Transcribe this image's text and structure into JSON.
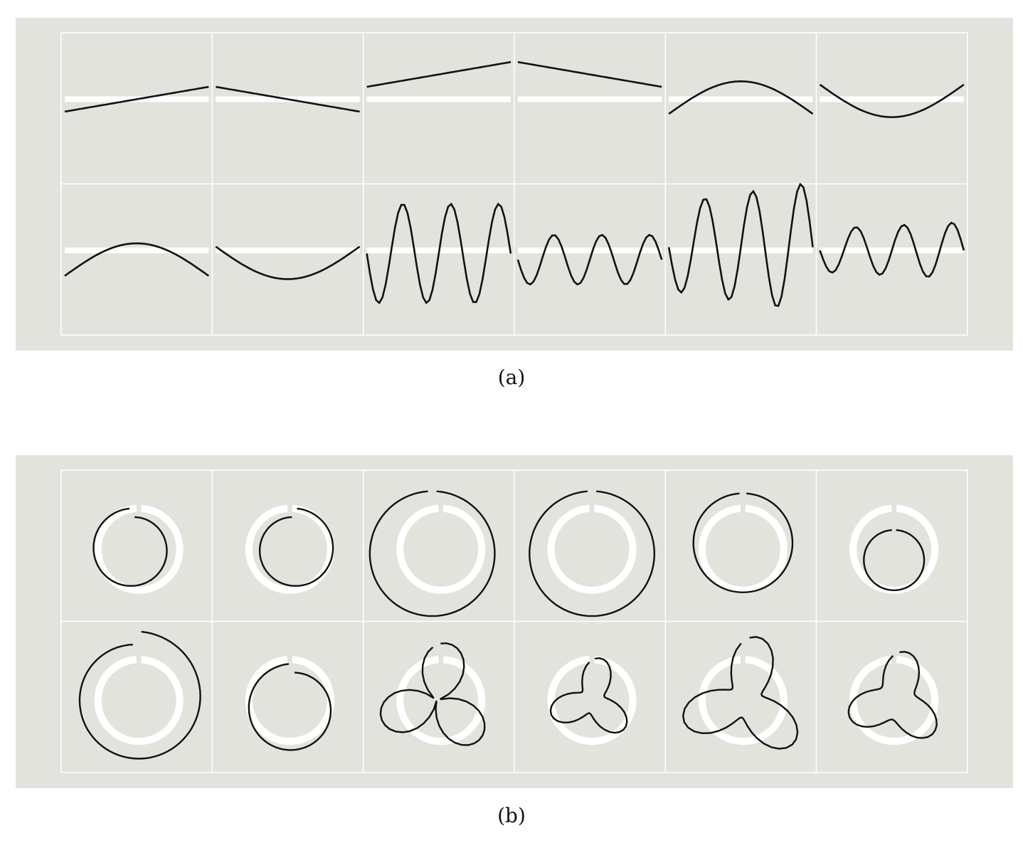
{
  "figure": {
    "caption_a": "(a)",
    "caption_b": "(b)"
  },
  "chart_data": [
    {
      "type": "line",
      "panel": "a",
      "layout": "small-multiples",
      "rows": 2,
      "cols": 6,
      "background": "#e3e3de",
      "reference_color": "#ffffff",
      "curve_color": "#111111",
      "grid": true,
      "cells": [
        {
          "kind": "linear",
          "amp": 0.4,
          "direction": 1
        },
        {
          "kind": "linear",
          "amp": 0.4,
          "direction": -1
        },
        {
          "kind": "linear",
          "amp": 0.4,
          "direction": 1,
          "offset": 0.8
        },
        {
          "kind": "linear",
          "amp": 0.4,
          "direction": -1,
          "offset": 0.8
        },
        {
          "kind": "sine",
          "amp": 1.05,
          "cycles": 0.5,
          "phase": 0.0,
          "offset": 0.0,
          "sign": 1
        },
        {
          "kind": "sine",
          "amp": 1.05,
          "cycles": 0.5,
          "phase": 0.0,
          "offset": 0.0,
          "sign": -1
        },
        {
          "kind": "sine",
          "amp": 1.05,
          "cycles": 0.5,
          "phase": 0.0,
          "offset": -0.35,
          "sign": 1
        },
        {
          "kind": "sine",
          "amp": 1.05,
          "cycles": 0.5,
          "phase": 0.0,
          "offset": -0.35,
          "sign": -1
        },
        {
          "kind": "osc",
          "amp": 1.6,
          "cycles": 3.0,
          "growth": 0.0,
          "offset": -0.1
        },
        {
          "kind": "osc",
          "amp": 0.8,
          "cycles": 3.0,
          "growth": 0.0,
          "offset": -0.3
        },
        {
          "kind": "osc",
          "amp": 1.4,
          "cycles": 3.0,
          "growth": 0.5,
          "offset": 0.1
        },
        {
          "kind": "osc",
          "amp": 0.7,
          "cycles": 3.0,
          "growth": 0.3,
          "offset": 0.0
        }
      ]
    },
    {
      "type": "line",
      "panel": "b",
      "layout": "small-multiples-polar",
      "rows": 2,
      "cols": 6,
      "background": "#e3e3de",
      "reference_color": "#ffffff",
      "curve_color": "#111111",
      "grid": true,
      "cells": [
        {
          "kind": "spiral",
          "r0": 0.75,
          "r1": 0.95,
          "cx": -0.15,
          "cy": 0.0,
          "lobes": 0,
          "lobeAmp": 0
        },
        {
          "kind": "spiral",
          "r0": 0.95,
          "r1": 0.75,
          "cx": 0.1,
          "cy": 0.0,
          "lobes": 0,
          "lobeAmp": 0
        },
        {
          "kind": "spiral",
          "r0": 1.45,
          "r1": 1.45,
          "cx": -0.2,
          "cy": 0.1,
          "lobes": 0,
          "lobeAmp": 0
        },
        {
          "kind": "spiral",
          "r0": 1.45,
          "r1": 1.45,
          "cx": 0.0,
          "cy": 0.1,
          "lobes": 0,
          "lobeAmp": 0
        },
        {
          "kind": "spiral",
          "r0": 1.15,
          "r1": 1.15,
          "cx": 0.0,
          "cy": -0.15,
          "lobes": 0,
          "lobeAmp": 0
        },
        {
          "kind": "spiral",
          "r0": 0.7,
          "r1": 0.7,
          "cx": 0.0,
          "cy": 0.25,
          "lobes": 0,
          "lobeAmp": 0
        },
        {
          "kind": "spiral",
          "r0": 1.55,
          "r1": 1.25,
          "cx": -0.05,
          "cy": -0.05,
          "lobes": 0,
          "lobeAmp": 0
        },
        {
          "kind": "spiral",
          "r0": 0.85,
          "r1": 1.05,
          "cx": 0.05,
          "cy": 0.2,
          "lobes": 0,
          "lobeAmp": 0
        },
        {
          "kind": "rose",
          "r0": 0.0,
          "r1": 0.0,
          "cx": -0.1,
          "cy": 0.0,
          "lobes": 3,
          "lobeAmp": 1.35
        },
        {
          "kind": "trefoil",
          "r0": 0.65,
          "r1": 0.65,
          "cx": 0.0,
          "cy": 0.0,
          "lobes": 3,
          "lobeAmp": 0.35
        },
        {
          "kind": "trefoil",
          "r0": 0.95,
          "r1": 0.95,
          "cx": 0.05,
          "cy": 0.0,
          "lobes": 3,
          "lobeAmp": 0.55
        },
        {
          "kind": "trefoil",
          "r0": 0.8,
          "r1": 0.8,
          "cx": 0.05,
          "cy": 0.0,
          "lobes": 3,
          "lobeAmp": 0.35
        }
      ]
    }
  ]
}
